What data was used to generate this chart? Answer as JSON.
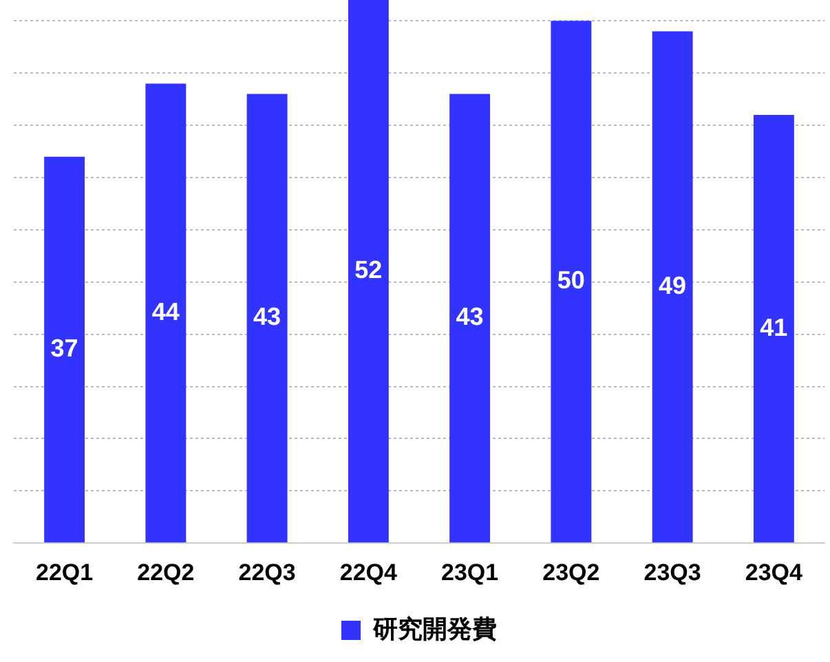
{
  "chart_data": {
    "type": "bar",
    "categories": [
      "22Q1",
      "22Q2",
      "22Q3",
      "22Q4",
      "23Q1",
      "23Q2",
      "23Q3",
      "23Q4"
    ],
    "series": [
      {
        "name": "研究開発費",
        "color": "#3333ff",
        "values": [
          37,
          44,
          43,
          52,
          43,
          50,
          49,
          41
        ]
      }
    ],
    "ylim": [
      0,
      52
    ],
    "yticks": [
      {
        "value": 0,
        "label": null
      },
      {
        "value": 5,
        "label": null
      },
      {
        "value": 10,
        "label": null
      },
      {
        "value": 15,
        "label": null
      },
      {
        "value": 20,
        "label": null
      },
      {
        "value": 25,
        "label": null
      },
      {
        "value": 30,
        "label": null
      },
      {
        "value": 35,
        "label": null
      },
      {
        "value": 40,
        "label": null
      },
      {
        "value": 45,
        "label": null
      },
      {
        "value": 50,
        "label": null
      }
    ],
    "grid": "y",
    "tick_labels": "x",
    "legend": "bottom",
    "data_labels": true
  }
}
